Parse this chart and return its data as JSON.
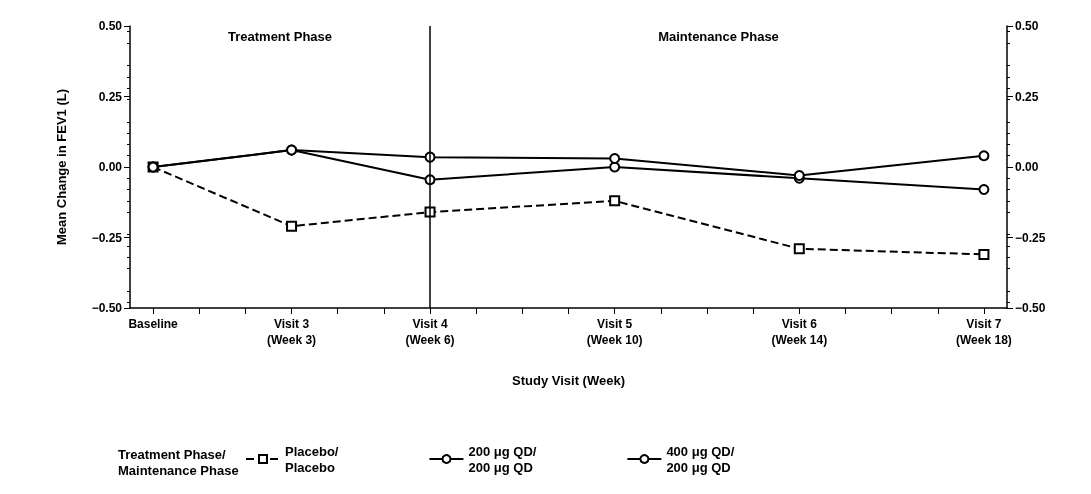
{
  "chart_data": {
    "type": "line",
    "xlabel": "Study Visit (Week)",
    "ylabel": "Mean Change in FEV1 (L)",
    "legend_title": "Treatment Phase/\nMaintenance Phase",
    "legend": "bottom",
    "grid": false,
    "line_style": "solid",
    "categories": [
      "Baseline",
      null,
      null,
      "Visit 3\n(Week 3)",
      null,
      null,
      "Visit 4\n(Week 6)",
      null,
      null,
      null,
      "Visit 5\n(Week 10)",
      null,
      null,
      null,
      "Visit 6\n(Week 14)",
      null,
      null,
      null,
      "Visit 7\n(Week 18)"
    ],
    "ylim": [
      -0.5,
      0.5
    ],
    "yticks": [
      {
        "value": -0.5,
        "label": "−0.50"
      },
      {
        "value": -0.25,
        "label": "−0.25"
      },
      {
        "value": 0,
        "label": "0.00"
      },
      {
        "value": 0.25,
        "label": "0.25"
      },
      {
        "value": 0.5,
        "label": "0.50"
      }
    ],
    "y2lim": [
      -0.5,
      0.5
    ],
    "y2ticks": [
      {
        "value": -0.5,
        "label": "−0.50"
      },
      {
        "value": -0.25,
        "label": "−0.25"
      },
      {
        "value": 0,
        "label": "0.00"
      },
      {
        "value": 0.25,
        "label": "0.25"
      },
      {
        "value": 0.5,
        "label": "0.50"
      }
    ],
    "ref_lines": [
      {
        "axis": "x",
        "value": "Visit 4\n(Week 6)"
      }
    ],
    "annotations": [
      "Treatment Phase",
      "Maintenance Phase"
    ],
    "series": [
      {
        "name": "Placebo/\nPlacebo",
        "color": "#000000",
        "marker": "square",
        "line_style": "dashed",
        "x": [
          "Baseline",
          "Visit 3\n(Week 3)",
          "Visit 4\n(Week 6)",
          "Visit 5\n(Week 10)",
          "Visit 6\n(Week 14)",
          "Visit 7\n(Week 18)"
        ],
        "values": [
          0,
          -0.21,
          -0.16,
          -0.12,
          -0.29,
          -0.31
        ]
      },
      {
        "name": "200 μg QD/\n200 μg QD",
        "color": "#000000",
        "marker": "circle",
        "x": [
          "Baseline",
          "Visit 3\n(Week 3)",
          "Visit 4\n(Week 6)",
          "Visit 5\n(Week 10)",
          "Visit 6\n(Week 14)",
          "Visit 7\n(Week 18)"
        ],
        "values": [
          0,
          0.06,
          -0.045,
          0,
          -0.04,
          -0.08
        ]
      },
      {
        "name": "400 μg QD/\n200 μg QD",
        "color": "#000000",
        "marker": "circle",
        "x": [
          "Baseline",
          "Visit 3\n(Week 3)",
          "Visit 4\n(Week 6)",
          "Visit 5\n(Week 10)",
          "Visit 6\n(Week 14)",
          "Visit 7\n(Week 18)"
        ],
        "values": [
          0,
          0.06,
          0.035,
          0.03,
          -0.03,
          0.04
        ]
      }
    ]
  }
}
